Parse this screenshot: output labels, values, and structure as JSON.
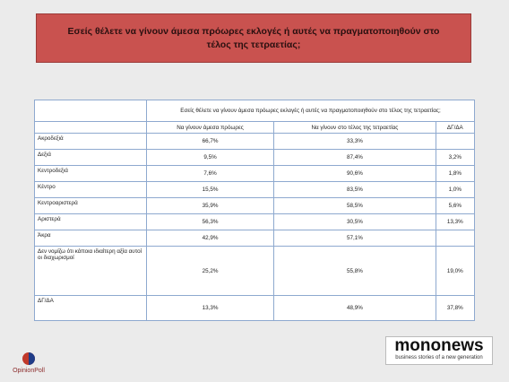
{
  "title": "Εσείς θέλετε να γίνουν άμεσα πρόωρες εκλογές ή αυτές να πραγματοποιηθούν στο τέλος της τετραετίας;",
  "table": {
    "header": "Εσείς θέλετε να γίνουν άμεσα πρόωρες εκλογές ή αυτές να πραγματοποιηθούν στο τέλος της τετραετίας;",
    "columns": [
      "Να γίνουν άμεσα πρόωρες",
      "Να γίνουν στο τέλος της τετραετίας",
      "ΔΓ/ΔΑ"
    ],
    "rows": [
      [
        "Ακροδεξιά",
        "66,7%",
        "33,3%",
        null
      ],
      [
        "Δεξιά",
        "9,5%",
        "87,4%",
        "3,2%"
      ],
      [
        "Κεντροδεξιά",
        "7,6%",
        "90,6%",
        "1,8%"
      ],
      [
        "Κέντρο",
        "15,5%",
        "83,5%",
        "1,0%"
      ],
      [
        "Κεντροαριστερά",
        "35,9%",
        "58,5%",
        "5,6%"
      ],
      [
        "Αριστερά",
        "56,3%",
        "30,5%",
        "13,3%"
      ],
      [
        "Άκρα",
        "42,9%",
        "57,1%",
        null
      ],
      [
        "Δεν νομίζω ότι κάποια ιδιαίτερη αξία αυτοί οι διαχωρισμοί",
        "25,2%",
        "55,8%",
        "19,0%"
      ],
      [
        "ΔΓ/ΔΑ",
        "13,3%",
        "48,9%",
        "37,8%"
      ]
    ]
  },
  "logos": {
    "left": "OpinionPoll",
    "right": {
      "name": "mononews",
      "tagline": "business stories of a new generation"
    }
  }
}
